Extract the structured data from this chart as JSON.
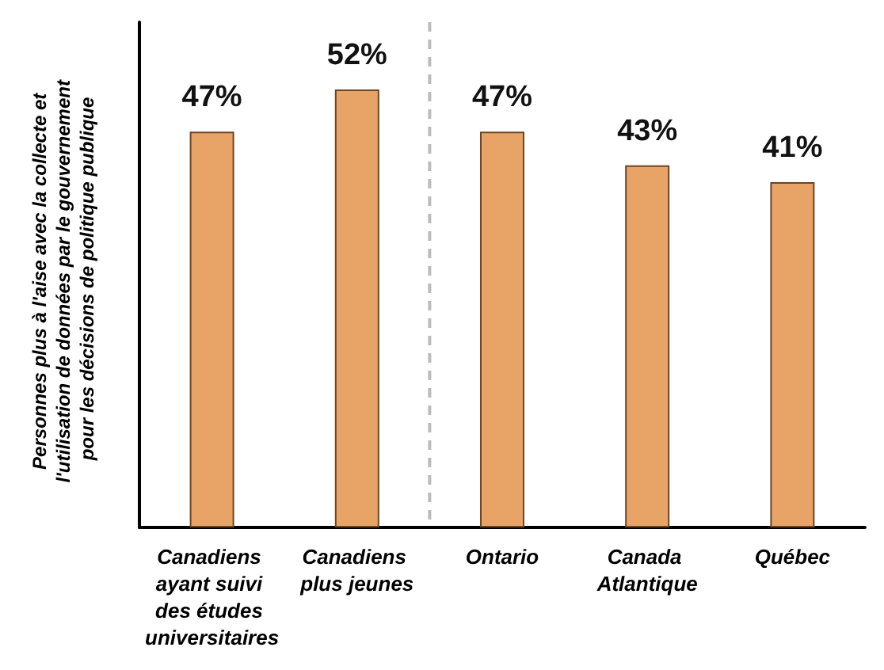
{
  "chart_data": {
    "type": "bar",
    "ylabel": "Personnes plus à l'aise avec la collecte et l'utilisation de données par le gouvernement pour les décisions de politique publique",
    "categories": [
      "Canadiens ayant suivi des études universitaires",
      "Canadiens plus jeunes",
      "Ontario",
      "Canada Atlantique",
      "Québec"
    ],
    "values": [
      47,
      52,
      47,
      43,
      41
    ],
    "color": "#e8a466",
    "value_labels": [
      "47%",
      "52%",
      "47%",
      "43%",
      "41%"
    ],
    "grid": false
  }
}
